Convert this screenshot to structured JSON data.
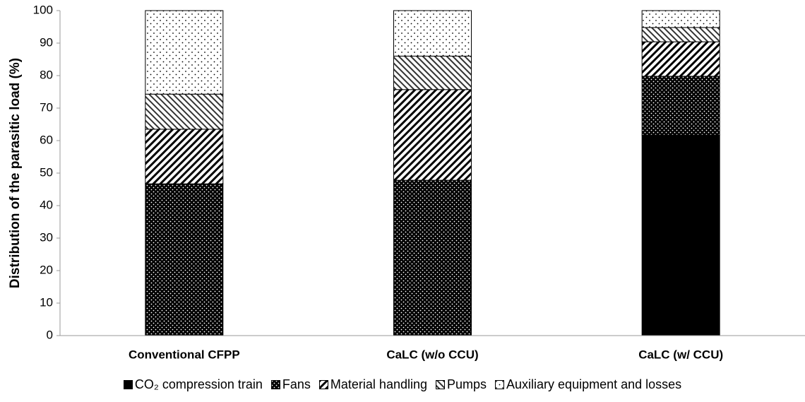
{
  "chart_data": {
    "type": "stacked-bar",
    "y_label": "Distribution of the parasitic load (%)",
    "categories": [
      "Conventional CFPP",
      "CaLC (w/o CCU)",
      "CaLC (w/ CCU)"
    ],
    "series": [
      {
        "name": "CO₂ compression train",
        "color": "#000000",
        "pattern": "solid",
        "values": [
          0,
          0,
          61.7
        ]
      },
      {
        "name": "Fans",
        "color": "#000000",
        "pattern": "dots-dark",
        "values": [
          46.7,
          47.8,
          18.1
        ]
      },
      {
        "name": "Material handling",
        "color": "#000000",
        "pattern": "hatch",
        "values": [
          16.8,
          27.9,
          10.6
        ]
      },
      {
        "name": "Pumps",
        "color": "#000000",
        "pattern": "hatch-reverse",
        "values": [
          10.8,
          10.3,
          4.4
        ]
      },
      {
        "name": "Auxiliary equipment and losses",
        "color": "#000000",
        "pattern": "dots-light",
        "values": [
          25.7,
          14.0,
          5.2
        ]
      }
    ],
    "ylim": [
      0,
      100
    ],
    "yticks": [
      0,
      10,
      20,
      30,
      40,
      50,
      60,
      70,
      80,
      90,
      100
    ],
    "grid": false
  }
}
